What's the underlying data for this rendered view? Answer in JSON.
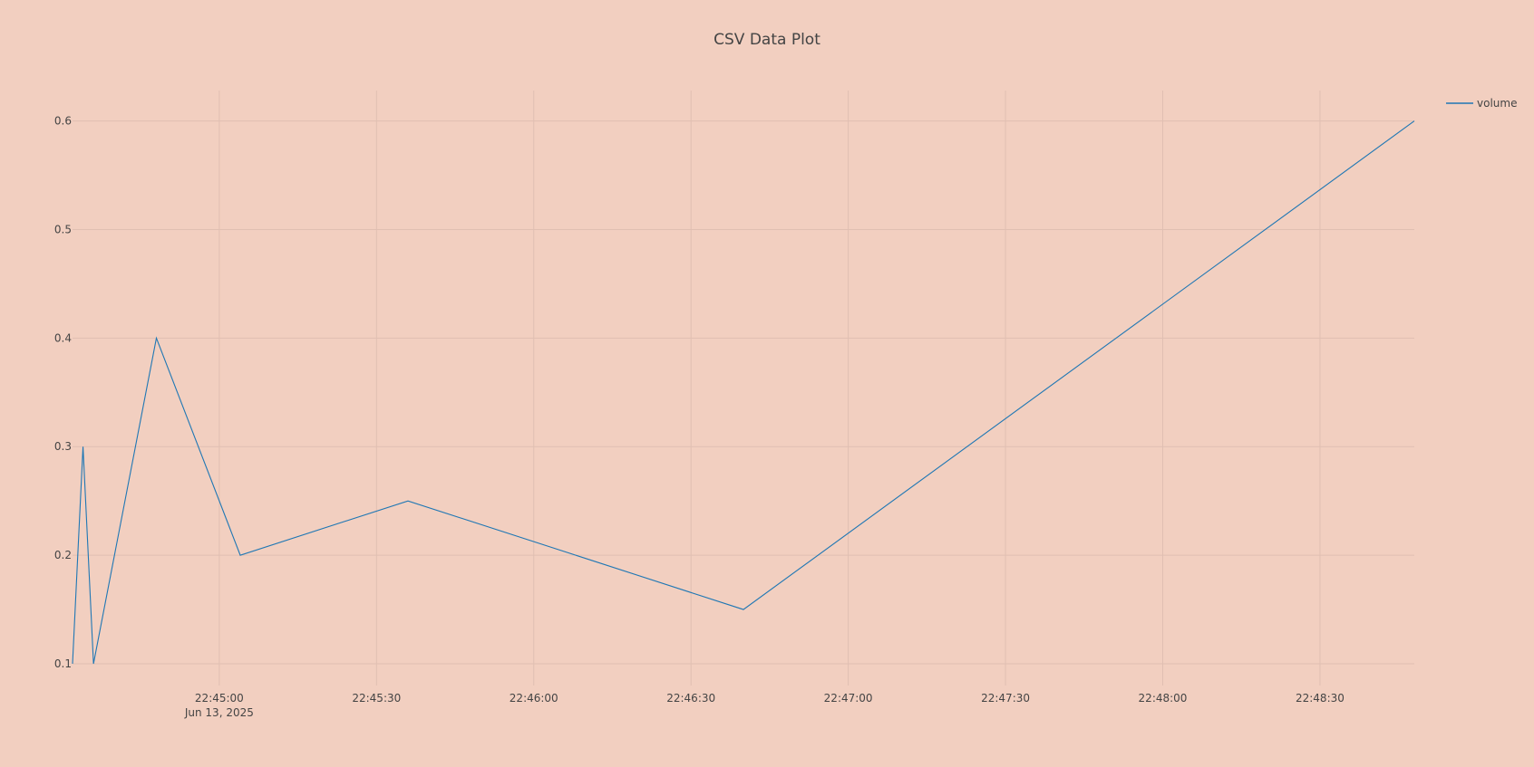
{
  "chart_data": {
    "type": "line",
    "title": "CSV Data Plot",
    "xlabel": "",
    "ylabel": "",
    "x_axis_type": "datetime",
    "xlim": [
      "2025-06-13 22:44:32",
      "2025-06-13 22:48:48"
    ],
    "ylim": [
      0.08,
      0.628
    ],
    "y_ticks": [
      0.1,
      0.2,
      0.3,
      0.4,
      0.5,
      0.6
    ],
    "y_tick_labels": [
      "0.1",
      "0.2",
      "0.3",
      "0.4",
      "0.5",
      "0.6"
    ],
    "x_ticks": [
      "2025-06-13 22:45:00",
      "2025-06-13 22:45:30",
      "2025-06-13 22:46:00",
      "2025-06-13 22:46:30",
      "2025-06-13 22:47:00",
      "2025-06-13 22:47:30",
      "2025-06-13 22:48:00",
      "2025-06-13 22:48:30"
    ],
    "x_tick_labels": [
      "22:45:00",
      "22:45:30",
      "22:46:00",
      "22:46:30",
      "22:47:00",
      "22:47:30",
      "22:48:00",
      "22:48:30"
    ],
    "x_date_label": "Jun 13, 2025",
    "grid": true,
    "legend": "top-right",
    "series": [
      {
        "name": "volume",
        "color": "#1f77b4",
        "x": [
          "2025-06-13 22:44:32",
          "2025-06-13 22:44:34",
          "2025-06-13 22:44:36",
          "2025-06-13 22:44:48",
          "2025-06-13 22:45:04",
          "2025-06-13 22:45:36",
          "2025-06-13 22:46:40",
          "2025-06-13 22:48:48"
        ],
        "y": [
          0.1,
          0.3,
          0.1,
          0.4,
          0.2,
          0.25,
          0.15,
          0.6
        ]
      }
    ]
  }
}
